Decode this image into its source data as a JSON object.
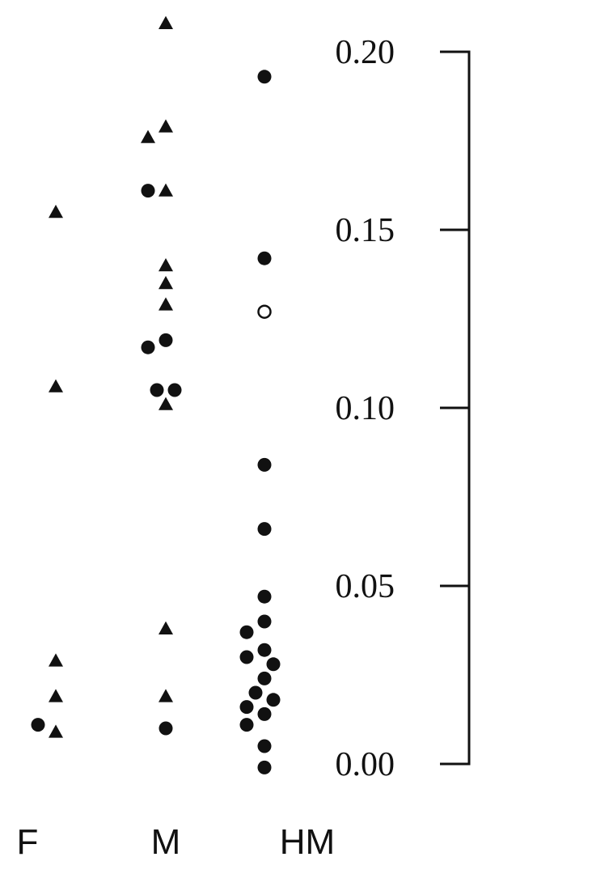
{
  "chart_data": {
    "type": "scatter",
    "categories": [
      "F",
      "M",
      "HM"
    ],
    "y_axis": {
      "range": [
        0.0,
        0.2
      ],
      "ticks": [
        "0.00",
        "0.05",
        "0.10",
        "0.15",
        "0.20"
      ],
      "tick_values": [
        0.0,
        0.05,
        0.1,
        0.15,
        0.2
      ],
      "side": "right"
    },
    "grid": false,
    "series": [
      {
        "marker": "triangle",
        "fill": "#111111",
        "points": [
          {
            "x": "F",
            "y": 0.155
          },
          {
            "x": "F",
            "y": 0.106
          },
          {
            "x": "F",
            "y": 0.029
          },
          {
            "x": "F",
            "y": 0.019
          },
          {
            "x": "F",
            "y": 0.009
          },
          {
            "x": "M",
            "y": 0.208
          },
          {
            "x": "M",
            "y": 0.179
          },
          {
            "x": "M",
            "y": 0.176
          },
          {
            "x": "M",
            "y": 0.161
          },
          {
            "x": "M",
            "y": 0.14
          },
          {
            "x": "M",
            "y": 0.135
          },
          {
            "x": "M",
            "y": 0.129
          },
          {
            "x": "M",
            "y": 0.101
          },
          {
            "x": "M",
            "y": 0.038
          },
          {
            "x": "M",
            "y": 0.019
          }
        ]
      },
      {
        "marker": "circle",
        "fill": "#111111",
        "points": [
          {
            "x": "F",
            "y": 0.011
          },
          {
            "x": "M",
            "y": 0.161
          },
          {
            "x": "M",
            "y": 0.119
          },
          {
            "x": "M",
            "y": 0.117
          },
          {
            "x": "M",
            "y": 0.105
          },
          {
            "x": "M",
            "y": 0.105
          },
          {
            "x": "M",
            "y": 0.01
          },
          {
            "x": "HM",
            "y": 0.193
          },
          {
            "x": "HM",
            "y": 0.142
          },
          {
            "x": "HM",
            "y": 0.084
          },
          {
            "x": "HM",
            "y": 0.066
          },
          {
            "x": "HM",
            "y": 0.047
          },
          {
            "x": "HM",
            "y": 0.04
          },
          {
            "x": "HM",
            "y": 0.037
          },
          {
            "x": "HM",
            "y": 0.032
          },
          {
            "x": "HM",
            "y": 0.03
          },
          {
            "x": "HM",
            "y": 0.028
          },
          {
            "x": "HM",
            "y": 0.024
          },
          {
            "x": "HM",
            "y": 0.02
          },
          {
            "x": "HM",
            "y": 0.018
          },
          {
            "x": "HM",
            "y": 0.016
          },
          {
            "x": "HM",
            "y": 0.014
          },
          {
            "x": "HM",
            "y": 0.011
          },
          {
            "x": "HM",
            "y": 0.005
          },
          {
            "x": "HM",
            "y": -0.001
          }
        ]
      },
      {
        "marker": "open-circle",
        "fill": "#ffffff",
        "points": [
          {
            "x": "HM",
            "y": 0.127
          }
        ]
      }
    ]
  }
}
